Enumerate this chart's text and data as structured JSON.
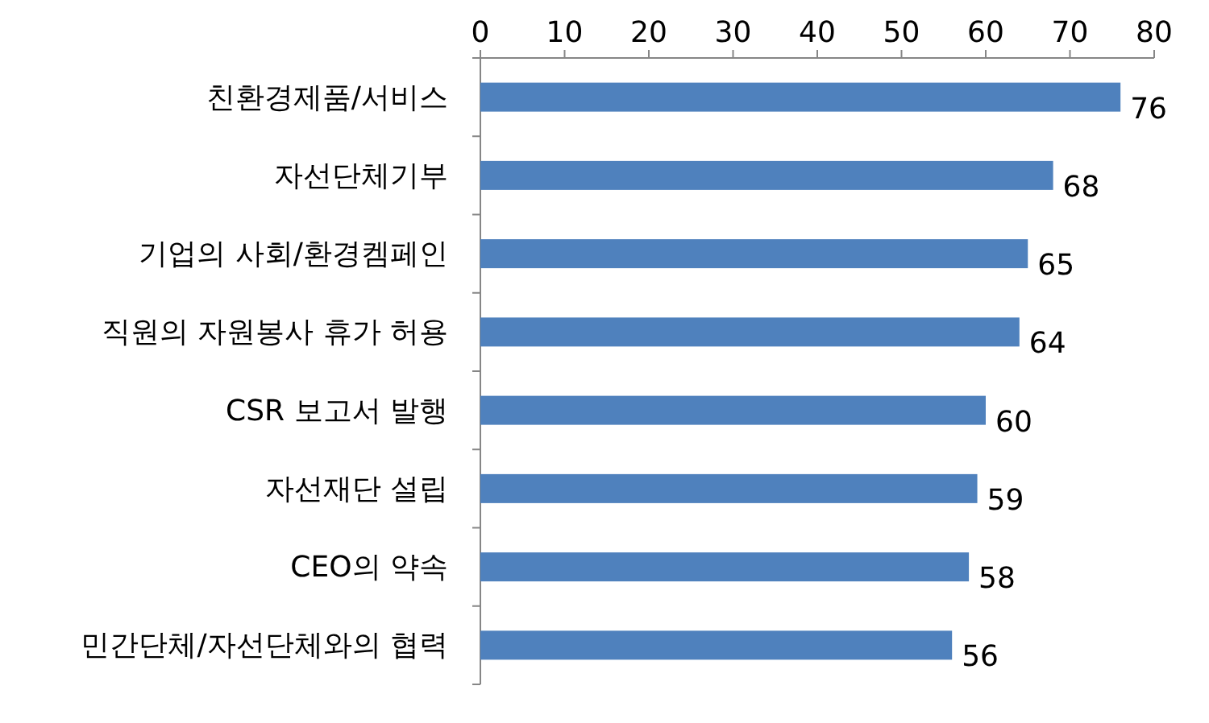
{
  "chart_data": {
    "type": "bar",
    "orientation": "horizontal",
    "categories": [
      "친환경제품/서비스",
      "자선단체기부",
      "기업의 사회/환경켐페인",
      "직원의 자원봉사 휴가 허용",
      "CSR 보고서 발행",
      "자선재단 설립",
      "CEO의 약속",
      "민간단체/자선단체와의 협력"
    ],
    "values": [
      76,
      68,
      65,
      64,
      60,
      59,
      58,
      56
    ],
    "color": "#4f81bd",
    "xlim": [
      0,
      80
    ],
    "xticks": [
      0,
      10,
      20,
      30,
      40,
      50,
      60,
      70,
      80
    ],
    "data_labels": true
  }
}
